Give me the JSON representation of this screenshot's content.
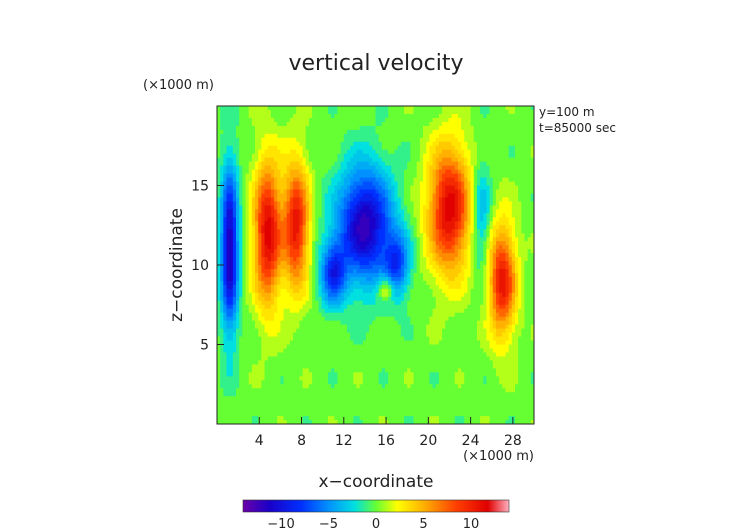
{
  "chart_data": {
    "type": "heatmap",
    "title": "vertical velocity",
    "xlabel": "x−coordinate",
    "ylabel": "z−coordinate",
    "x_unit": "(×1000 m)",
    "y_unit": "(×1000 m)",
    "annotations": [
      "y=100 m",
      "t=85000 sec"
    ],
    "xlim": [
      0,
      30
    ],
    "ylim": [
      0,
      20
    ],
    "x_ticks": [
      4,
      8,
      12,
      16,
      20,
      24,
      28
    ],
    "y_ticks": [
      5,
      10,
      15
    ],
    "x_tick_labels": [
      "4",
      "8",
      "12",
      "16",
      "20",
      "24",
      "28"
    ],
    "y_tick_labels": [
      "5",
      "10",
      "15"
    ],
    "colorbar": {
      "range": [
        -14,
        14
      ],
      "ticks": [
        -10,
        -5,
        0,
        5,
        10
      ],
      "tick_labels": [
        "−10",
        "−5",
        "0",
        "5",
        "10"
      ]
    },
    "features": [
      {
        "kind": "downdraft",
        "x": 1.2,
        "z": 11.0,
        "sx": 0.8,
        "sz": 5.0,
        "value": -12
      },
      {
        "kind": "updraft",
        "x": 4.8,
        "z": 12.0,
        "sx": 1.3,
        "sz": 4.5,
        "value": 11
      },
      {
        "kind": "updraft",
        "x": 7.5,
        "z": 12.5,
        "sx": 1.2,
        "sz": 4.0,
        "value": 10
      },
      {
        "kind": "downdraft",
        "x": 14.0,
        "z": 12.5,
        "sx": 2.5,
        "sz": 3.5,
        "value": -12
      },
      {
        "kind": "downdraft",
        "x": 11.0,
        "z": 9.5,
        "sx": 1.2,
        "sz": 2.0,
        "value": -8
      },
      {
        "kind": "downdraft",
        "x": 17.0,
        "z": 10.0,
        "sx": 1.2,
        "sz": 2.0,
        "value": -7
      },
      {
        "kind": "updraft",
        "x": 22.0,
        "z": 13.5,
        "sx": 2.0,
        "sz": 4.0,
        "value": 11
      },
      {
        "kind": "updraft",
        "x": 27.0,
        "z": 9.0,
        "sx": 1.3,
        "sz": 3.5,
        "value": 10
      },
      {
        "kind": "downdraft",
        "x": 25.0,
        "z": 13.0,
        "sx": 0.9,
        "sz": 3.5,
        "value": -4
      },
      {
        "kind": "updraft",
        "x": 16.0,
        "z": 8.5,
        "sx": 0.8,
        "sz": 0.8,
        "value": 5
      }
    ]
  }
}
